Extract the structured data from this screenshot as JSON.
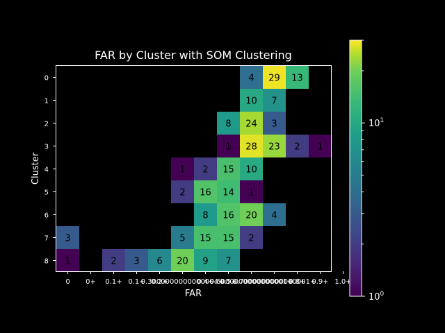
{
  "chart_data": {
    "type": "heatmap",
    "title": "FAR by Cluster with SOM Clustering",
    "xlabel": "FAR",
    "ylabel": "Cluster",
    "x_tick_labels": [
      "0",
      "0+",
      "0.1+",
      "0.1+",
      "0.2+",
      "0.3000000000000004+",
      "0.4+",
      "0.5+",
      "0.6000000000000001+",
      "0.7000000000000001+",
      "0.8+",
      "0.9+",
      "1.0+"
    ],
    "x_tick_labels_rendered": [
      "0",
      "0+",
      "0.1+",
      "0.1+",
      "0.2+",
      "0.3000000000000004+",
      "0.4+",
      "0.5+",
      "0.6000000000000001+",
      "0.7000000000000001+",
      "0.8+",
      "0.9+",
      "1.0+"
    ],
    "x_tick_display": [
      "0",
      "0+",
      "0.1+3000",
      "",
      "0.2+00000000000004+",
      "",
      "0.4+",
      "0.5+",
      "0.6000000000000001+",
      "0.7000000000000001+",
      "0.8+",
      "0.9+",
      "1.0+"
    ],
    "y_tick_labels": [
      "0",
      "1",
      "2",
      "3",
      "4",
      "5",
      "6",
      "7",
      "8"
    ],
    "colorscale": "viridis",
    "color_scale_type": "log",
    "vmin": 1,
    "vmax": 30,
    "colorbar_ticks": [
      "10^0",
      "10^1"
    ],
    "cells": [
      {
        "row": 0,
        "col": 8,
        "value": 4
      },
      {
        "row": 0,
        "col": 9,
        "value": 29
      },
      {
        "row": 0,
        "col": 10,
        "value": 13
      },
      {
        "row": 1,
        "col": 8,
        "value": 10
      },
      {
        "row": 1,
        "col": 9,
        "value": 7
      },
      {
        "row": 2,
        "col": 7,
        "value": 8
      },
      {
        "row": 2,
        "col": 8,
        "value": 24
      },
      {
        "row": 2,
        "col": 9,
        "value": 3
      },
      {
        "row": 3,
        "col": 7,
        "value": 1
      },
      {
        "row": 3,
        "col": 8,
        "value": 28
      },
      {
        "row": 3,
        "col": 9,
        "value": 23
      },
      {
        "row": 3,
        "col": 10,
        "value": 2
      },
      {
        "row": 3,
        "col": 11,
        "value": 1
      },
      {
        "row": 4,
        "col": 5,
        "value": 1
      },
      {
        "row": 4,
        "col": 6,
        "value": 2
      },
      {
        "row": 4,
        "col": 7,
        "value": 15
      },
      {
        "row": 4,
        "col": 8,
        "value": 10
      },
      {
        "row": 5,
        "col": 5,
        "value": 2
      },
      {
        "row": 5,
        "col": 6,
        "value": 16
      },
      {
        "row": 5,
        "col": 7,
        "value": 14
      },
      {
        "row": 5,
        "col": 8,
        "value": 1
      },
      {
        "row": 6,
        "col": 6,
        "value": 8
      },
      {
        "row": 6,
        "col": 7,
        "value": 16
      },
      {
        "row": 6,
        "col": 8,
        "value": 20
      },
      {
        "row": 6,
        "col": 9,
        "value": 4
      },
      {
        "row": 7,
        "col": 0,
        "value": 3
      },
      {
        "row": 7,
        "col": 5,
        "value": 5
      },
      {
        "row": 7,
        "col": 6,
        "value": 15
      },
      {
        "row": 7,
        "col": 7,
        "value": 15
      },
      {
        "row": 7,
        "col": 8,
        "value": 2
      },
      {
        "row": 8,
        "col": 0,
        "value": 1
      },
      {
        "row": 8,
        "col": 2,
        "value": 2
      },
      {
        "row": 8,
        "col": 3,
        "value": 3
      },
      {
        "row": 8,
        "col": 4,
        "value": 6
      },
      {
        "row": 8,
        "col": 5,
        "value": 20
      },
      {
        "row": 8,
        "col": 6,
        "value": 9
      },
      {
        "row": 8,
        "col": 7,
        "value": 7
      }
    ]
  }
}
